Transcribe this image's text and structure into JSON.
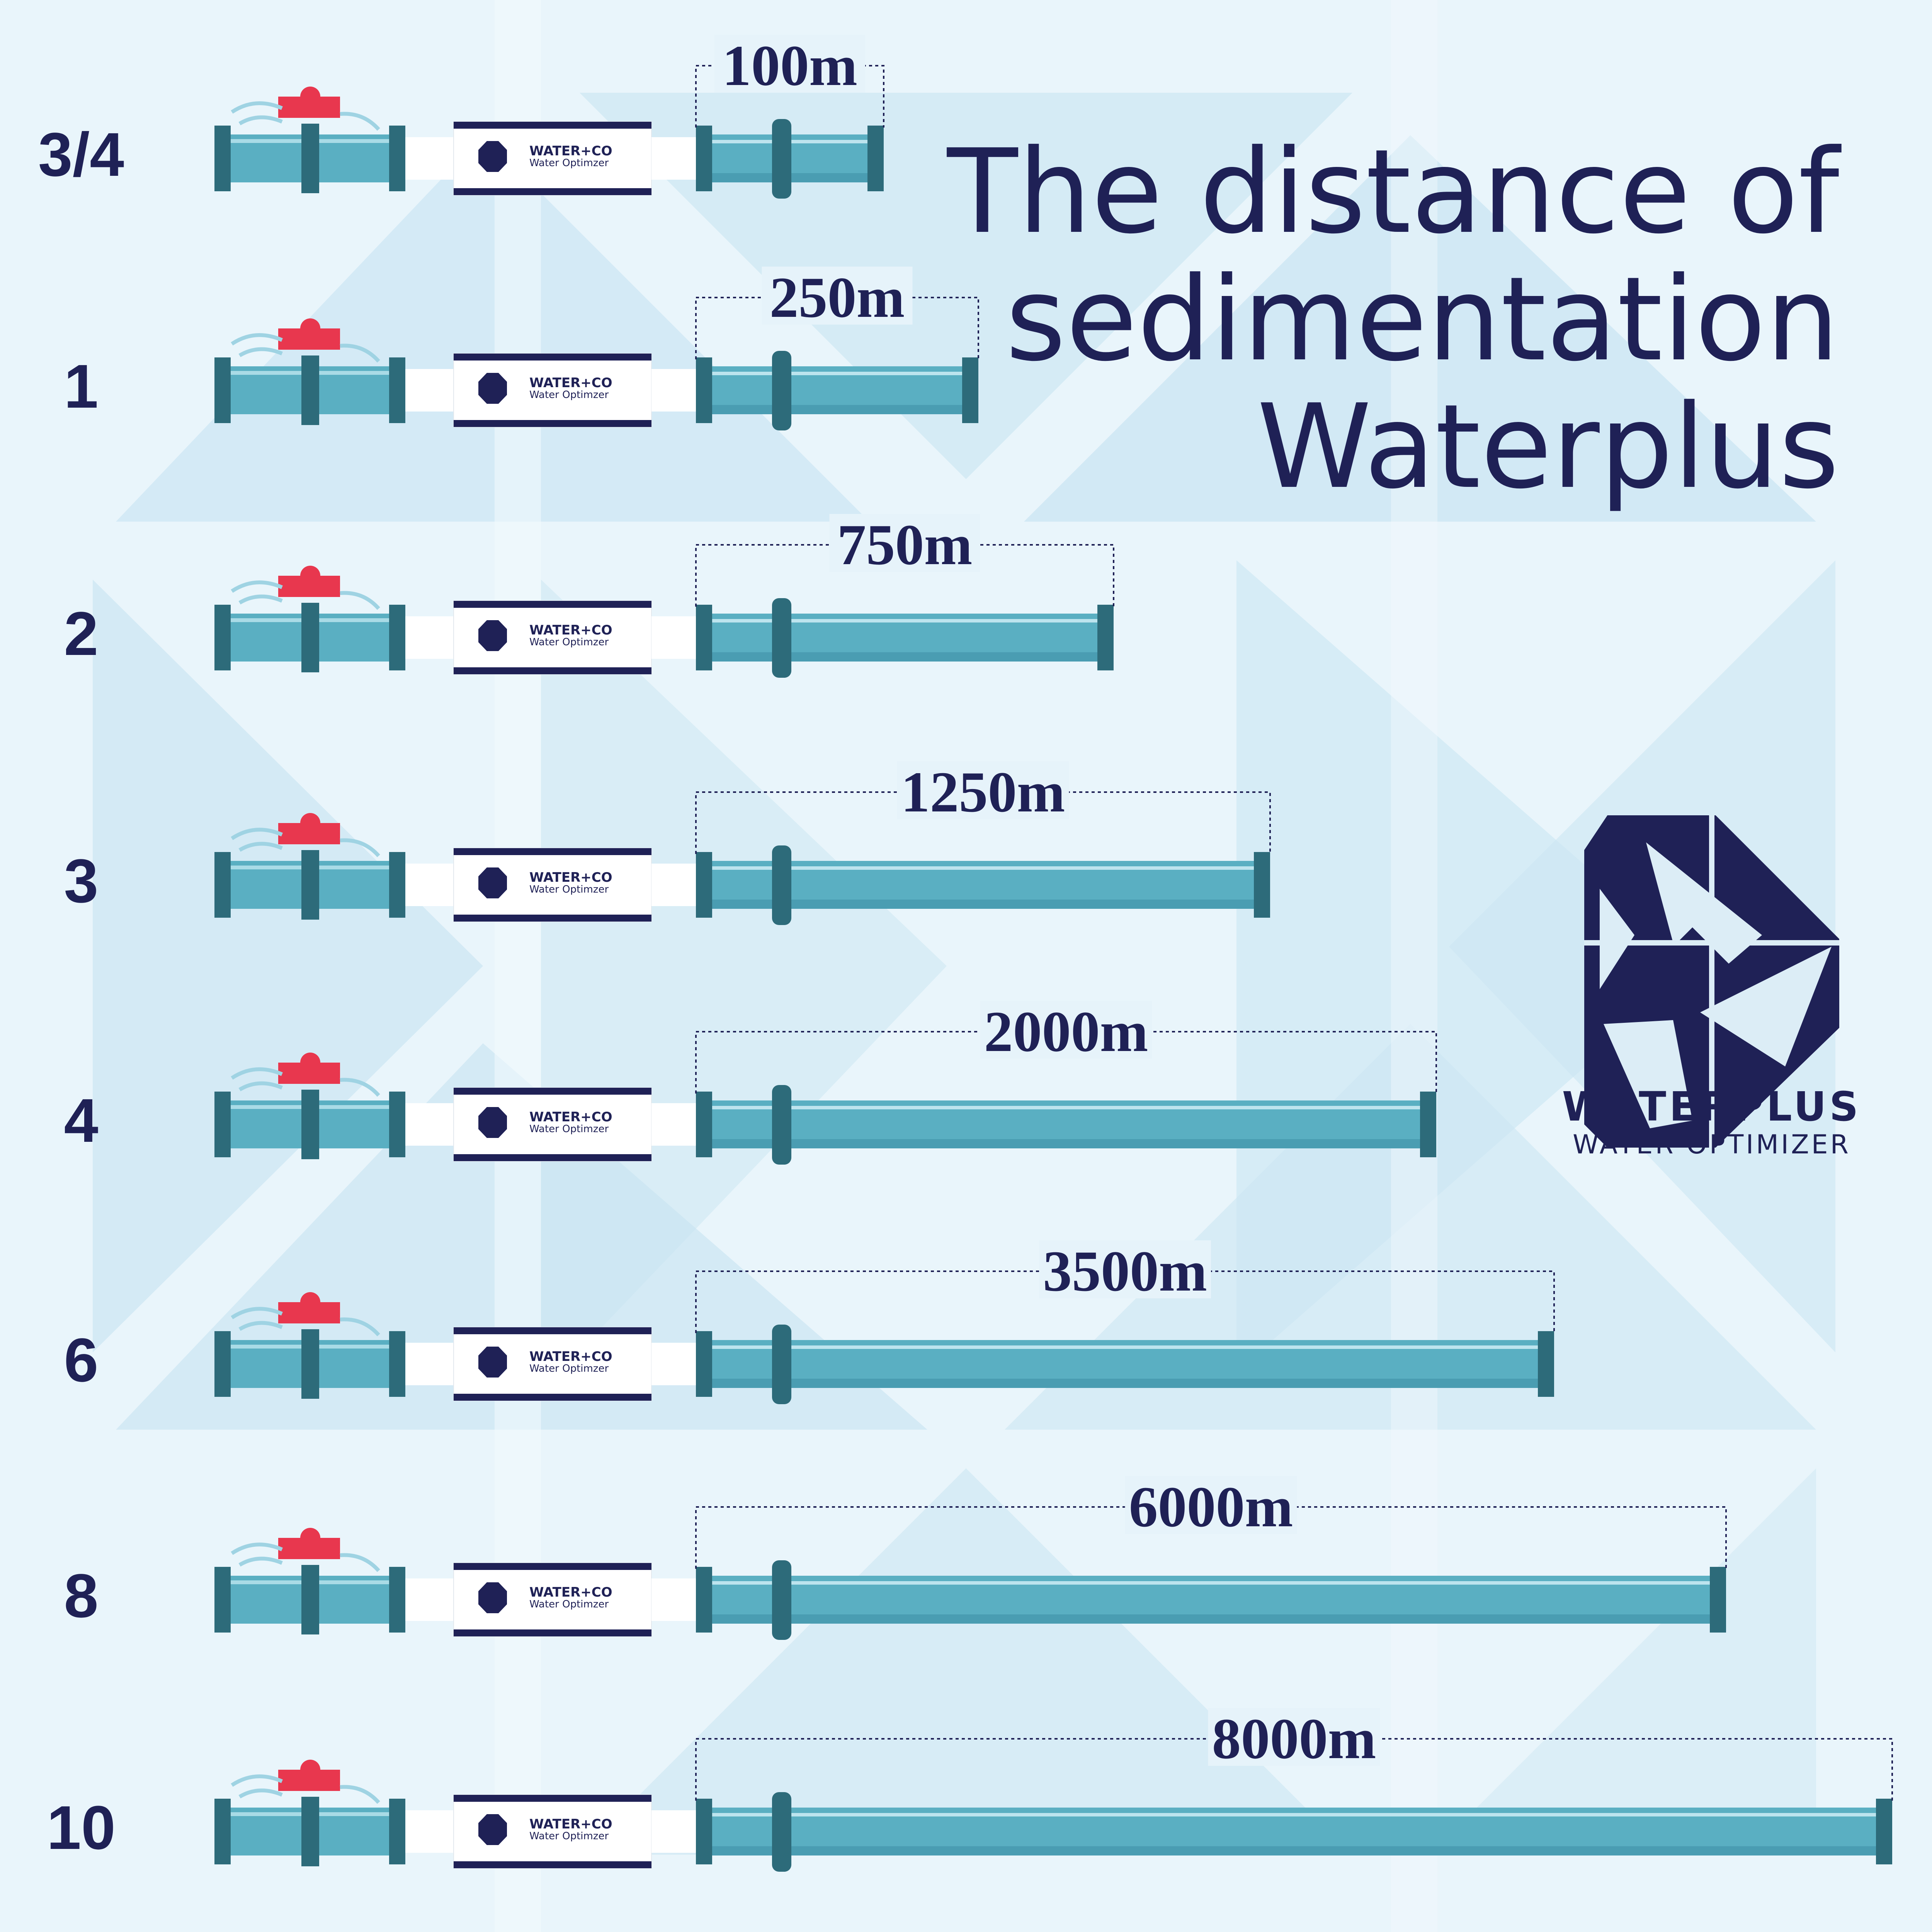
{
  "title": {
    "line1": "The distance of",
    "line2": "sedimentation",
    "line3": "Waterplus"
  },
  "brand": {
    "name": "WATERPLUS",
    "tagline": "WATER OPTIMIZER"
  },
  "device_label": {
    "name": "WATER+CO",
    "subtitle": "Water Optimzer"
  },
  "colors": {
    "navy": "#1f2156",
    "pipe": "#5aafc2",
    "pipe_dark": "#2d6b7a",
    "valve": "#e8374e"
  },
  "rows": [
    {
      "size": "3/4",
      "distance": "100m",
      "meters": 100
    },
    {
      "size": "1",
      "distance": "250m",
      "meters": 250
    },
    {
      "size": "2",
      "distance": "750m",
      "meters": 750
    },
    {
      "size": "3",
      "distance": "1250m",
      "meters": 1250
    },
    {
      "size": "4",
      "distance": "2000m",
      "meters": 2000
    },
    {
      "size": "6",
      "distance": "3500m",
      "meters": 3500
    },
    {
      "size": "8",
      "distance": "6000m",
      "meters": 6000
    },
    {
      "size": "10",
      "distance": "8000m",
      "meters": 8000
    }
  ]
}
